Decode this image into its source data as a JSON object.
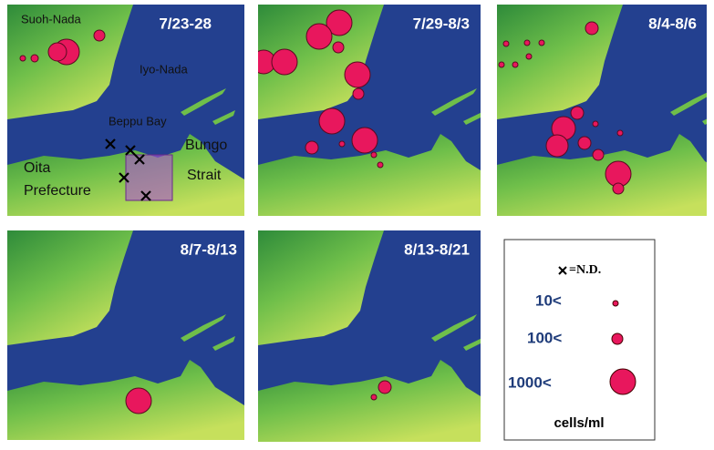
{
  "panels": [
    {
      "date": "7/23-28"
    },
    {
      "date": "7/29-8/3"
    },
    {
      "date": "8/4-8/6"
    },
    {
      "date": "8/7-8/13"
    },
    {
      "date": "8/13-8/21"
    }
  ],
  "places": {
    "suoh_nada": "Suoh-Nada",
    "iyo_nada": "Iyo-Nada",
    "beppu_bay": "Beppu Bay",
    "oita": [
      "Oita",
      "Prefecture"
    ],
    "bungo": [
      "Bungo",
      "Strait"
    ]
  },
  "legend": {
    "nd": "=N.D.",
    "levels": [
      "10<",
      "100<",
      "1000<"
    ],
    "unit": "cells/ml"
  }
}
